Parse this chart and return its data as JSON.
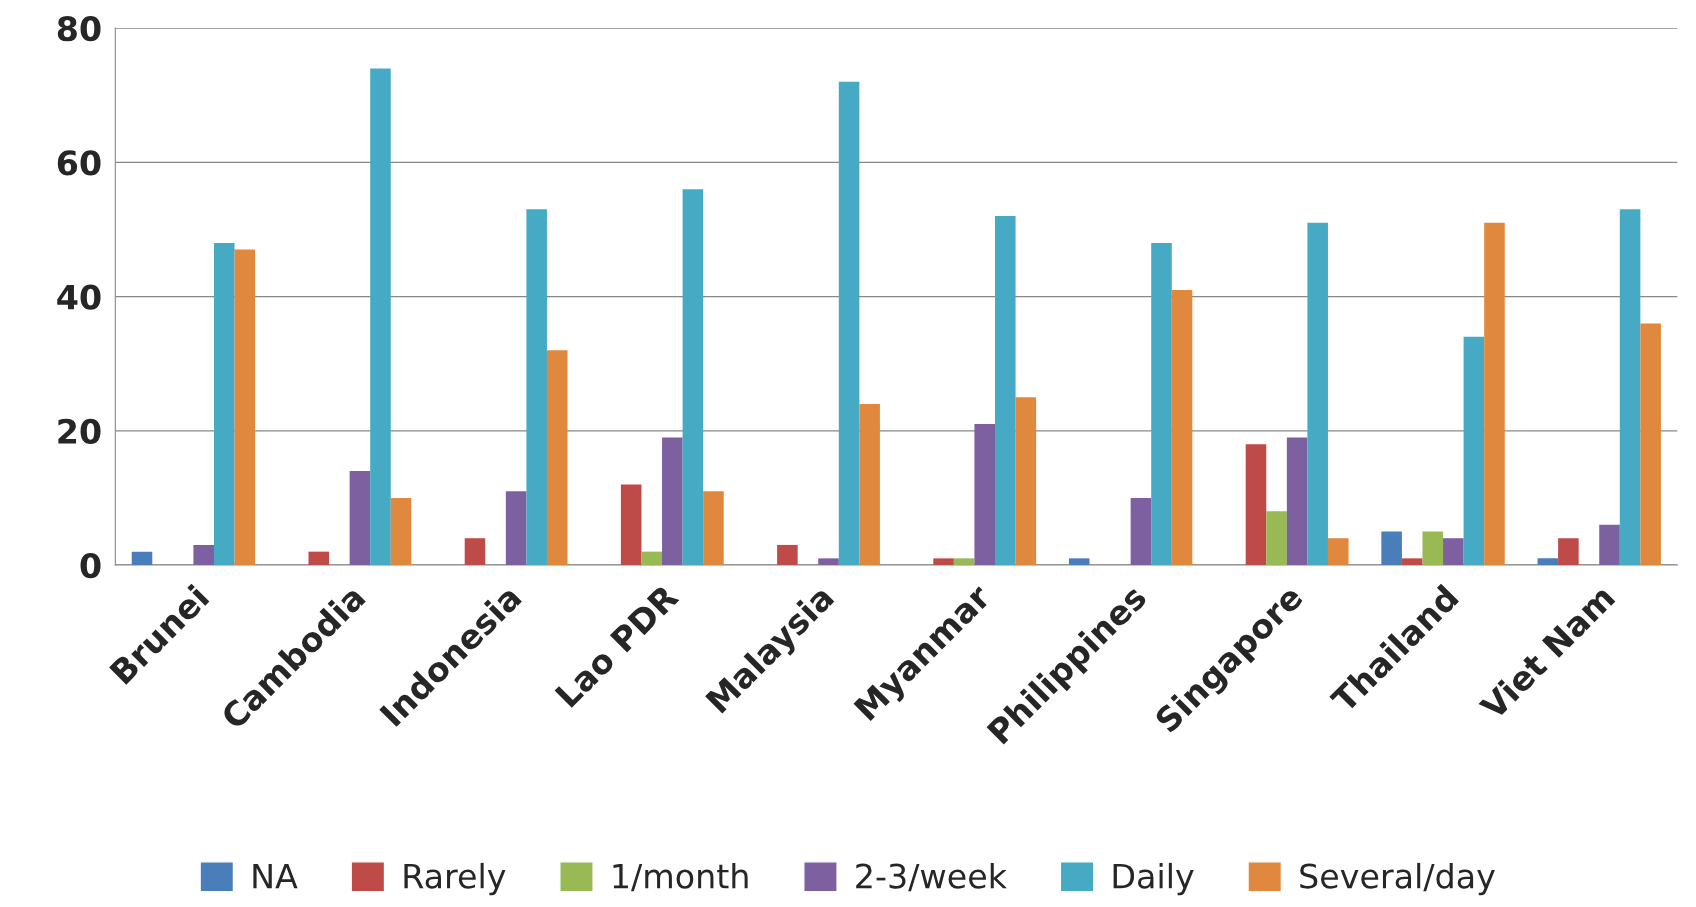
{
  "chart_data": {
    "type": "bar",
    "categories": [
      "Brunei",
      "Cambodia",
      "Indonesia",
      "Lao PDR",
      "Malaysia",
      "Myanmar",
      "Philippines",
      "Singapore",
      "Thailand",
      "Viet Nam"
    ],
    "series": [
      {
        "name": "NA",
        "color": "#4a7ebb",
        "values": [
          2,
          0,
          0,
          0,
          0,
          0,
          1,
          0,
          5,
          1
        ]
      },
      {
        "name": "Rarely",
        "color": "#be4b48",
        "values": [
          0,
          2,
          4,
          12,
          3,
          1,
          0,
          18,
          1,
          4
        ]
      },
      {
        "name": "1/month",
        "color": "#98b954",
        "values": [
          0,
          0,
          0,
          2,
          0,
          1,
          0,
          8,
          5,
          0
        ]
      },
      {
        "name": "2-3/week",
        "color": "#7d60a0",
        "values": [
          3,
          14,
          11,
          19,
          1,
          21,
          10,
          19,
          4,
          6
        ]
      },
      {
        "name": "Daily",
        "color": "#46aac5",
        "values": [
          48,
          74,
          53,
          56,
          72,
          52,
          48,
          51,
          34,
          53
        ]
      },
      {
        "name": "Several/day",
        "color": "#e0883e",
        "values": [
          47,
          10,
          32,
          11,
          24,
          25,
          41,
          4,
          51,
          36
        ]
      }
    ],
    "ylim": [
      0,
      80
    ],
    "yticks": [
      0,
      20,
      40,
      60,
      80
    ],
    "grid": "y",
    "legend": "bottom"
  }
}
